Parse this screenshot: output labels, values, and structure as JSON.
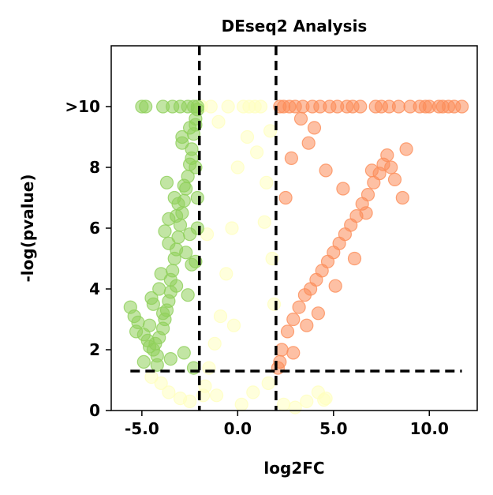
{
  "chart_data": {
    "type": "scatter",
    "title": "DEseq2 Analysis",
    "xlabel": "log2FC",
    "ylabel": "-log(pvalue)",
    "xlim": [
      -6.6,
      12.5
    ],
    "ylim": [
      0,
      12
    ],
    "x_ticks": [
      {
        "value": -5,
        "label": "-5.0"
      },
      {
        "value": 0,
        "label": "0.0"
      },
      {
        "value": 5,
        "label": "5.0"
      },
      {
        "value": 10,
        "label": "10.0"
      }
    ],
    "y_ticks": [
      {
        "value": 0,
        "label": "0"
      },
      {
        "value": 2,
        "label": "2"
      },
      {
        "value": 4,
        "label": "4"
      },
      {
        "value": 6,
        "label": "6"
      },
      {
        "value": 8,
        "label": "8"
      },
      {
        "value": 10,
        "label": ">10"
      }
    ],
    "y_cap": 10,
    "thresholds": {
      "log2fc": [
        -2,
        2
      ],
      "neg_log_pvalue": 1.3
    },
    "colors": {
      "down": "#8fcf5a",
      "not_significant": "#ffffbf",
      "up": "#fc8d59",
      "threshold_line": "#000000"
    },
    "series": [
      {
        "group": "down",
        "x": [
          -5.6,
          -5.4,
          -5.2,
          -4.9,
          -4.6,
          -4.4,
          -4.3,
          -4.2,
          -4.1,
          -3.9,
          -3.8,
          -3.7,
          -3.6,
          -3.5,
          -3.5,
          -3.4,
          -3.3,
          -3.2,
          -3.1,
          -3.0,
          -2.9,
          -2.8,
          -2.7,
          -2.6,
          -2.5,
          -2.4,
          -2.3,
          -2.2,
          -2.1,
          -4.5,
          -4.0,
          -3.6,
          -3.2,
          -2.8,
          -2.4,
          -2.2,
          -4.8,
          -5.0,
          -3.9,
          -3.4,
          -3.0,
          -2.6,
          -2.3,
          -2.1,
          -5.3,
          -4.7,
          -4.4,
          -3.8,
          -3.3,
          -2.9,
          -2.5,
          -2.2,
          -4.1,
          -3.7,
          -3.1,
          -2.7,
          -2.4,
          -2.1,
          -4.9,
          -4.2,
          -3.5,
          -2.8,
          -2.3,
          -4.6,
          -3.9,
          -3.2,
          -2.6,
          -2.2,
          -2.1,
          -2.5,
          -3.6,
          -2.9
        ],
        "y": [
          3.4,
          3.1,
          2.9,
          2.5,
          2.1,
          2.0,
          2.2,
          1.8,
          2.4,
          2.7,
          3.0,
          3.3,
          3.6,
          3.9,
          4.3,
          4.6,
          5.0,
          5.3,
          5.7,
          6.1,
          6.5,
          6.9,
          7.3,
          7.7,
          8.1,
          8.6,
          9.1,
          9.6,
          9.9,
          3.7,
          4.5,
          5.5,
          6.4,
          7.4,
          8.3,
          9.4,
          10,
          10,
          10,
          10,
          10,
          10,
          10,
          10,
          2.6,
          2.3,
          3.5,
          5.9,
          7.0,
          8.8,
          9.3,
          8.0,
          4.0,
          7.5,
          6.8,
          5.2,
          4.8,
          6.0,
          1.6,
          1.5,
          1.7,
          1.9,
          1.4,
          2.8,
          3.2,
          4.1,
          3.8,
          4.9,
          7.0,
          5.8,
          6.3,
          9.0
        ]
      },
      {
        "group": "not_significant",
        "x": [
          -4.5,
          -4.0,
          -3.6,
          -3.0,
          -2.5,
          -1.8,
          -1.5,
          -1.2,
          -0.9,
          -0.6,
          -0.3,
          0.0,
          0.3,
          0.6,
          0.9,
          1.2,
          1.5,
          1.8,
          2.4,
          3.0,
          3.6,
          4.2,
          4.6,
          -1.9,
          -1.4,
          -1.0,
          -0.5,
          0.5,
          1.0,
          1.4,
          1.9,
          -1.7,
          -1.1,
          0.2,
          0.8,
          1.6,
          -0.2,
          -1.6,
          1.7,
          4.5
        ],
        "y": [
          1.1,
          0.9,
          0.6,
          0.4,
          0.3,
          0.5,
          1.4,
          2.2,
          3.1,
          4.5,
          6.0,
          8.0,
          10,
          10,
          10,
          10,
          7.5,
          5.0,
          0.2,
          0.1,
          0.3,
          0.6,
          0.4,
          10,
          10,
          9.5,
          10,
          9.0,
          8.5,
          6.2,
          3.5,
          0.8,
          0.5,
          0.2,
          0.6,
          0.9,
          2.8,
          5.8,
          9.2,
          0.35
        ]
      },
      {
        "group": "up",
        "x": [
          2.1,
          2.3,
          2.6,
          2.9,
          3.2,
          3.5,
          3.8,
          4.1,
          4.4,
          4.7,
          5.0,
          5.3,
          5.6,
          5.9,
          6.2,
          6.5,
          6.8,
          7.1,
          7.4,
          7.6,
          7.8,
          8.0,
          8.2,
          8.6,
          9.0,
          9.5,
          10.0,
          10.5,
          11.0,
          11.7,
          7.2,
          7.5,
          7.9,
          8.4,
          6.0,
          6.4,
          5.7,
          5.2,
          4.8,
          4.3,
          3.9,
          3.4,
          3.0,
          2.7,
          2.4,
          2.2,
          6.7,
          5.5,
          4.6,
          3.7,
          4.0,
          3.3,
          2.8,
          2.5,
          5.1,
          6.1,
          4.2,
          3.6,
          2.9,
          2.2,
          7.0,
          8.8,
          9.8,
          10.7,
          11.3
        ],
        "y": [
          1.4,
          2.0,
          2.6,
          3.0,
          3.4,
          3.8,
          4.0,
          4.3,
          4.6,
          4.9,
          5.2,
          5.5,
          5.8,
          6.1,
          6.4,
          6.8,
          7.1,
          7.5,
          7.8,
          8.1,
          8.4,
          8.0,
          7.6,
          7.0,
          10,
          10,
          10,
          10,
          10,
          10,
          10,
          10,
          10,
          10,
          10,
          10,
          10,
          10,
          10,
          10,
          10,
          10,
          10,
          10,
          10,
          10,
          6.5,
          7.3,
          7.9,
          8.8,
          9.3,
          9.6,
          8.3,
          7.0,
          4.1,
          5.0,
          3.2,
          2.8,
          1.9,
          1.6,
          7.9,
          8.6,
          10,
          10,
          10
        ]
      }
    ]
  }
}
